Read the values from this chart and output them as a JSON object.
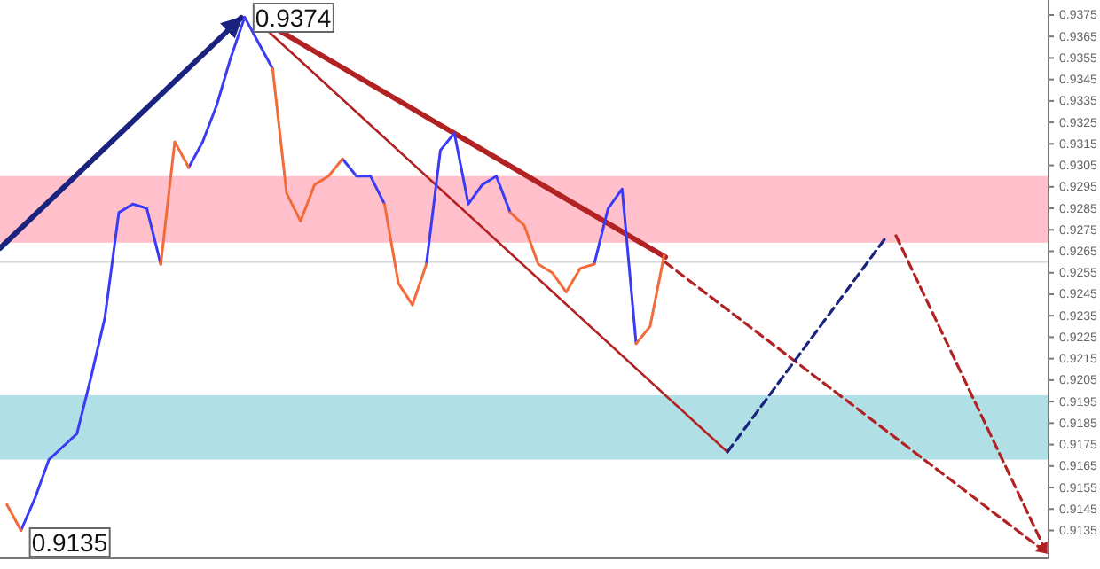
{
  "chart_data": {
    "type": "line",
    "categories": [
      null,
      null,
      null,
      null,
      null,
      null,
      null,
      null,
      null,
      null,
      null,
      null,
      null,
      null,
      null,
      null,
      null,
      null,
      null,
      null,
      null,
      null,
      null,
      null,
      null,
      null,
      null,
      null,
      null,
      null,
      null,
      null,
      null,
      null,
      null,
      null,
      null,
      null,
      null,
      null,
      null,
      null,
      null,
      null,
      null,
      null,
      null,
      null,
      null,
      null,
      null,
      null,
      null,
      null,
      null,
      null,
      null,
      null,
      null,
      null,
      null,
      null,
      null,
      null,
      null,
      null,
      null,
      null,
      null,
      null,
      null,
      null,
      null,
      null,
      null
    ],
    "ylim": [
      0.9122,
      0.9382
    ],
    "yticks": [
      0.9135,
      0.9145,
      0.9155,
      0.9165,
      0.9175,
      0.9185,
      0.9195,
      0.9205,
      0.9215,
      0.9225,
      0.9235,
      0.9245,
      0.9255,
      0.9265,
      0.9275,
      0.9285,
      0.9295,
      0.9305,
      0.9315,
      0.9325,
      0.9335,
      0.9345,
      0.9355,
      0.9365,
      0.9375
    ],
    "tick_labels": "y",
    "line_style": "solid",
    "bands": [
      {
        "axis": "y",
        "from": 0.9269,
        "to": 0.93,
        "color": "#ffc0cb"
      },
      {
        "axis": "y",
        "from": 0.9168,
        "to": 0.9198,
        "color": "#b0e0e6"
      }
    ],
    "ref_lines": [
      {
        "axis": "y",
        "value": 0.926,
        "color": "#d8d8d8"
      }
    ],
    "series": [
      {
        "color": "#3b3bf5",
        "values": [
          null,
          0.9135,
          0.915,
          0.9168,
          0.9174,
          0.918,
          0.9206,
          0.9234,
          0.9283,
          0.9287,
          0.9285,
          0.9259,
          null,
          0.9304,
          0.9316,
          0.9333,
          0.9355,
          0.9374,
          0.9362,
          0.935,
          null,
          null,
          null,
          null,
          0.9308,
          0.93,
          0.93,
          0.9287,
          null,
          null,
          0.9259,
          0.9312,
          0.932,
          0.9287,
          0.9296,
          0.93,
          0.9283,
          null,
          null,
          null,
          null,
          null,
          0.9259,
          0.9285,
          0.9294,
          0.9222,
          null,
          null,
          null,
          null,
          null,
          null,
          null,
          null,
          null,
          null,
          null,
          null,
          null,
          null,
          null,
          null,
          null,
          null,
          null,
          null,
          null,
          null,
          null,
          null,
          null,
          null,
          null,
          null,
          null
        ]
      },
      {
        "color": "#f26b3a",
        "values": [
          0.9147,
          0.9135,
          null,
          null,
          null,
          null,
          null,
          null,
          null,
          null,
          null,
          0.9259,
          0.9316,
          0.9304,
          null,
          null,
          null,
          null,
          null,
          0.935,
          0.9292,
          0.9279,
          0.9296,
          0.93,
          0.9308,
          null,
          null,
          0.9287,
          0.925,
          0.924,
          0.9259,
          null,
          null,
          null,
          null,
          null,
          0.9283,
          0.9277,
          0.9259,
          0.9255,
          0.9246,
          0.9257,
          0.9259,
          null,
          null,
          0.9222,
          0.923,
          0.9263,
          null,
          null,
          null,
          null,
          null,
          null,
          null,
          null,
          null,
          null,
          null,
          null,
          null,
          null,
          null,
          null,
          null,
          null,
          null,
          null,
          null,
          null,
          null,
          null,
          null,
          null,
          null
        ]
      }
    ],
    "annotations": [
      "0.9374",
      "0.9135"
    ]
  }
}
